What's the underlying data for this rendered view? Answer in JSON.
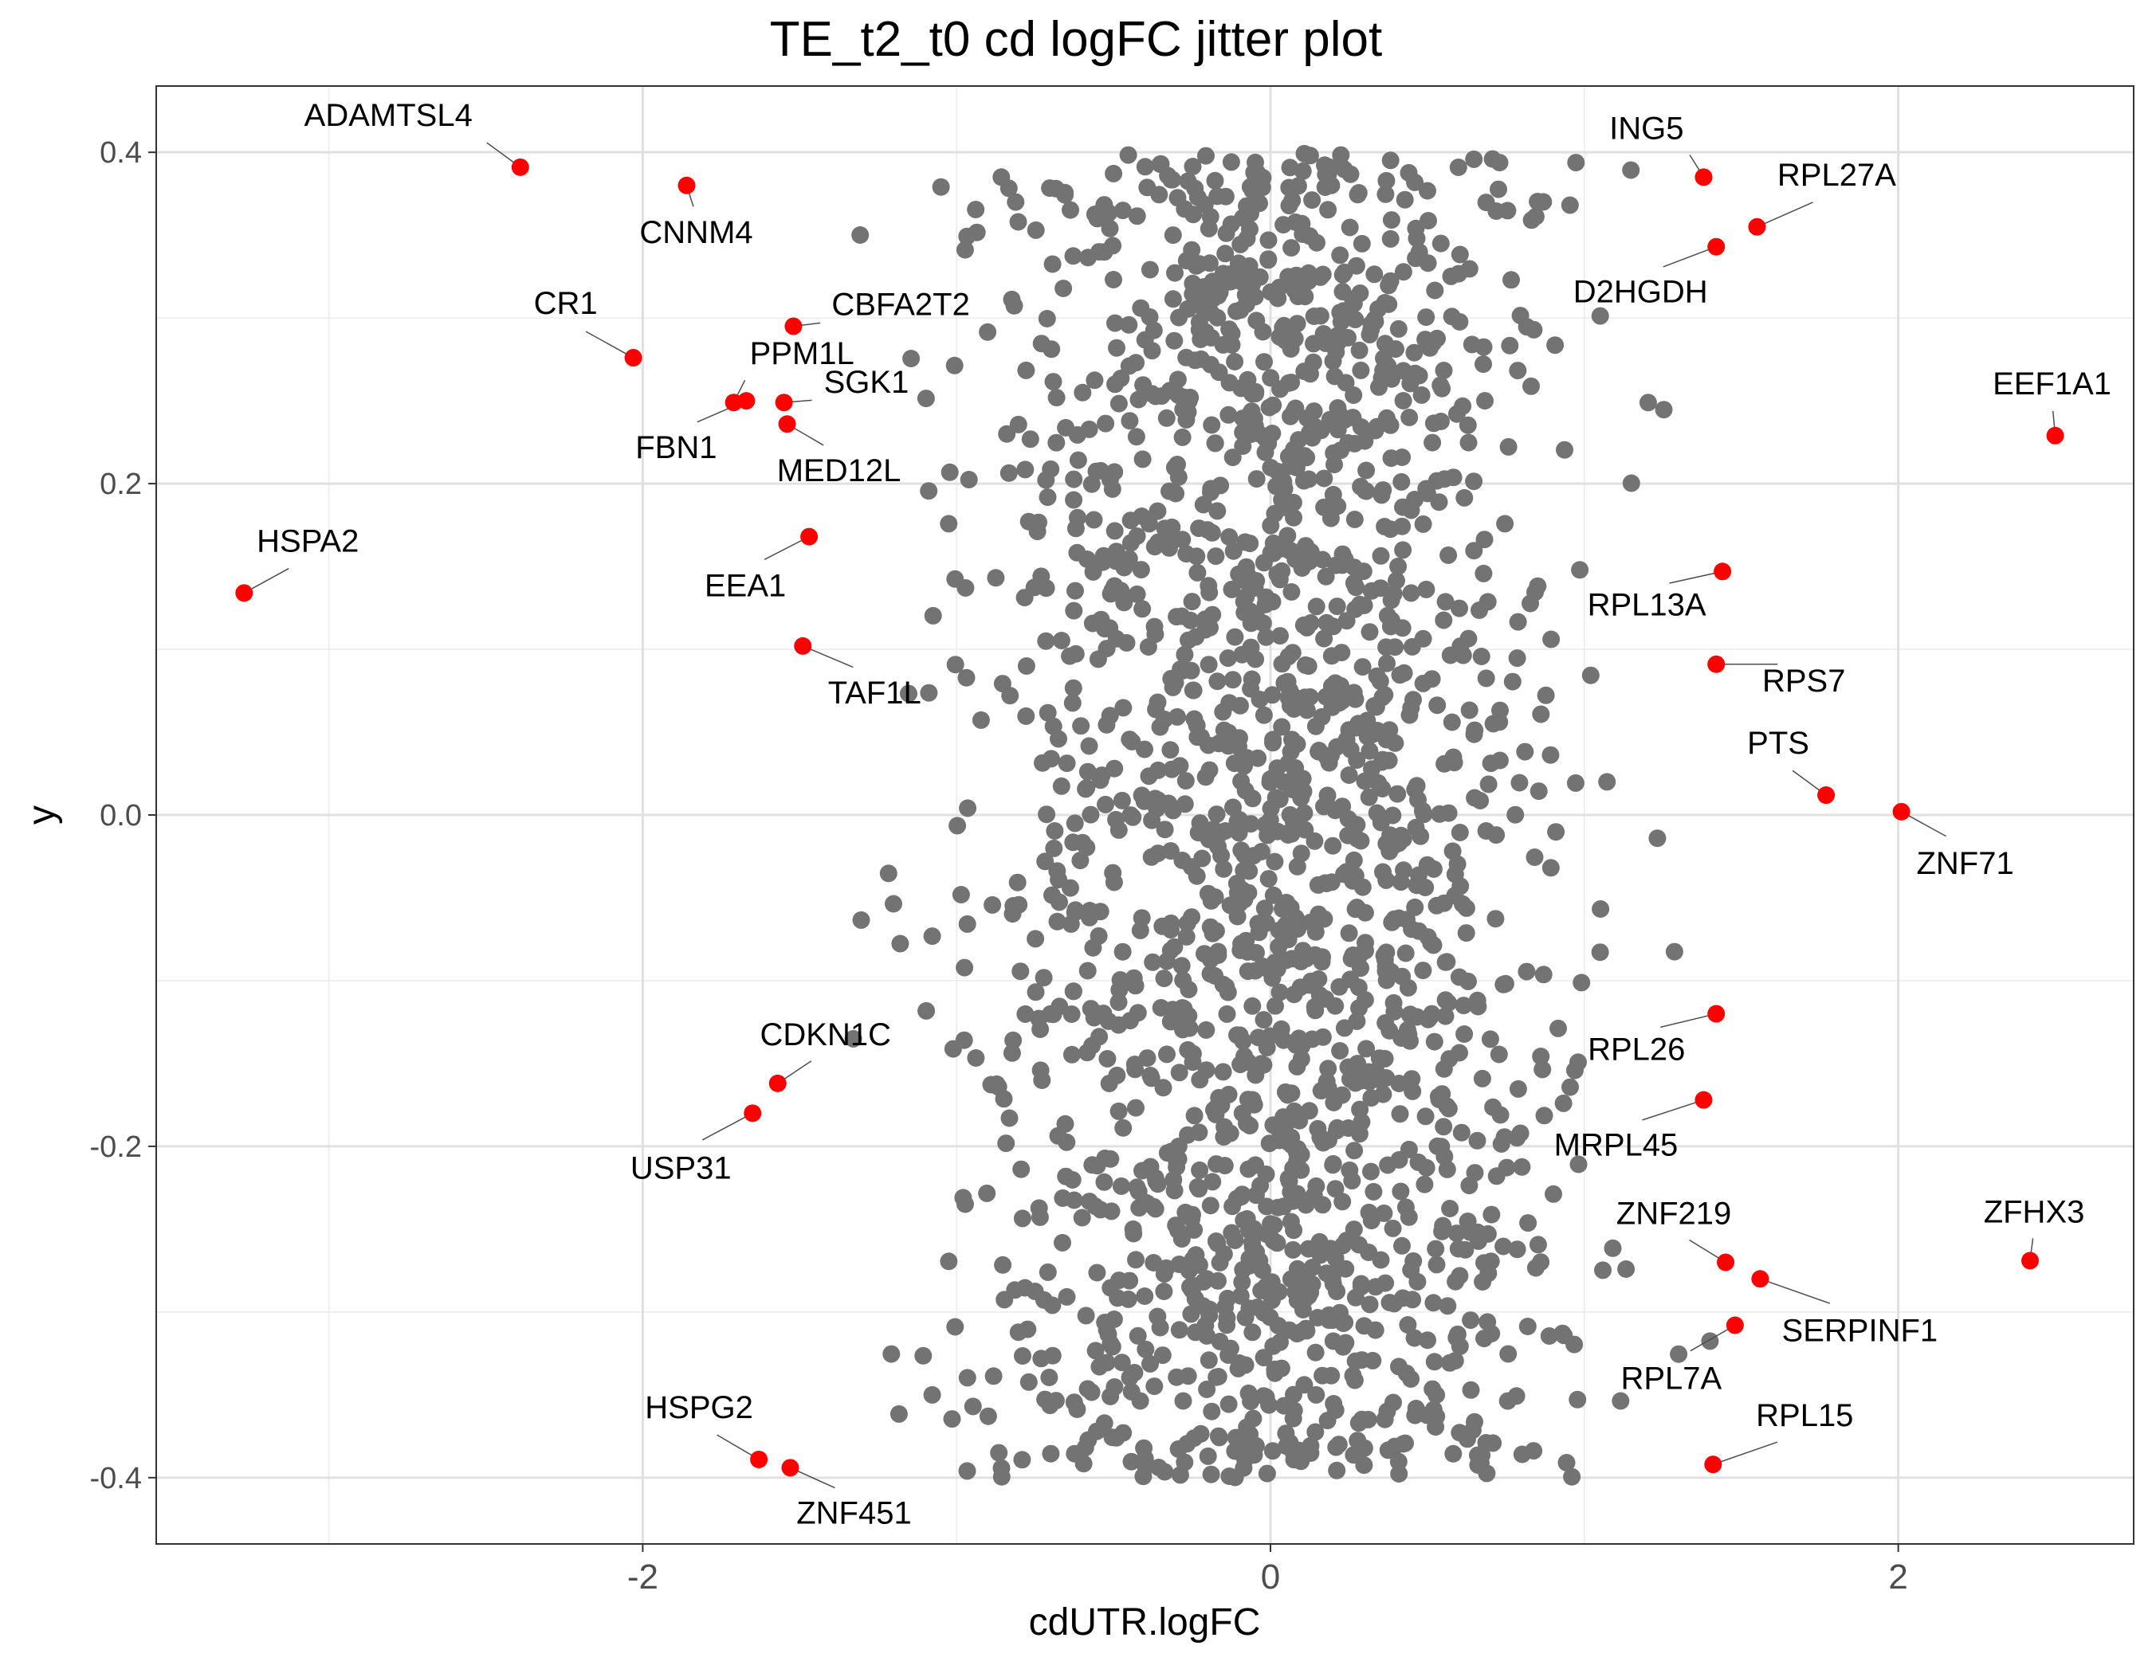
{
  "chart_data": {
    "type": "scatter",
    "title": "TE_t2_t0 cd logFC jitter plot",
    "xlabel": "cdUTR.logFC",
    "ylabel": "y",
    "xlim": [
      -3.55,
      2.75
    ],
    "ylim": [
      -0.44,
      0.44
    ],
    "x_ticks": [
      -2,
      0,
      2
    ],
    "x_tick_labels": [
      "-2",
      "0",
      "2"
    ],
    "y_ticks": [
      -0.4,
      -0.2,
      0.0,
      0.2,
      0.4
    ],
    "y_tick_labels": [
      "-0.4",
      "-0.2",
      "0.0",
      "0.2",
      "0.4"
    ],
    "grid": true,
    "background_points": {
      "color": "#737373",
      "count": 2000,
      "x_center": 0.0,
      "x_sd": 0.45,
      "x_range": [
        -1.5,
        1.4
      ],
      "y_range": [
        -0.4,
        0.4
      ],
      "note_visual": "dense cloud of non-highlighted genes"
    },
    "highlight_color": "#ff0000",
    "highlighted": [
      {
        "label": "ADAMTSL4",
        "x": -2.39,
        "y": 0.391
      },
      {
        "label": "CNNM4",
        "x": -1.86,
        "y": 0.38
      },
      {
        "label": "ING5",
        "x": 1.38,
        "y": 0.385
      },
      {
        "label": "RPL27A",
        "x": 1.55,
        "y": 0.355
      },
      {
        "label": "D2HGDH",
        "x": 1.42,
        "y": 0.343
      },
      {
        "label": "CBFA2T2",
        "x": -1.52,
        "y": 0.295
      },
      {
        "label": "CR1",
        "x": -2.03,
        "y": 0.276
      },
      {
        "label": "PPM1L",
        "x": -1.71,
        "y": 0.249
      },
      {
        "label": "FBN1",
        "x": -1.67,
        "y": 0.25
      },
      {
        "label": "SGK1",
        "x": -1.55,
        "y": 0.249
      },
      {
        "label": "MED12L",
        "x": -1.54,
        "y": 0.236
      },
      {
        "label": "EEF1A1",
        "x": 2.5,
        "y": 0.229
      },
      {
        "label": "EEA1",
        "x": -1.47,
        "y": 0.168
      },
      {
        "label": "RPL13A",
        "x": 1.44,
        "y": 0.147
      },
      {
        "label": "HSPA2",
        "x": -3.27,
        "y": 0.134
      },
      {
        "label": "TAF1L",
        "x": -1.49,
        "y": 0.102
      },
      {
        "label": "RPS7",
        "x": 1.42,
        "y": 0.091
      },
      {
        "label": "PTS",
        "x": 1.77,
        "y": 0.012
      },
      {
        "label": "ZNF71",
        "x": 2.01,
        "y": 0.002
      },
      {
        "label": "RPL26",
        "x": 1.42,
        "y": -0.12
      },
      {
        "label": "CDKN1C",
        "x": -1.57,
        "y": -0.162
      },
      {
        "label": "MRPL45",
        "x": 1.38,
        "y": -0.172
      },
      {
        "label": "USP31",
        "x": -1.65,
        "y": -0.18
      },
      {
        "label": "ZNF219",
        "x": 1.45,
        "y": -0.27
      },
      {
        "label": "ZFHX3",
        "x": 2.42,
        "y": -0.269
      },
      {
        "label": "SERPINF1",
        "x": 1.56,
        "y": -0.28
      },
      {
        "label": "RPL7A",
        "x": 1.48,
        "y": -0.308
      },
      {
        "label": "HSPG2",
        "x": -1.63,
        "y": -0.389
      },
      {
        "label": "ZNF451",
        "x": -1.53,
        "y": -0.394
      },
      {
        "label": "RPL15",
        "x": 1.41,
        "y": -0.392
      }
    ]
  }
}
